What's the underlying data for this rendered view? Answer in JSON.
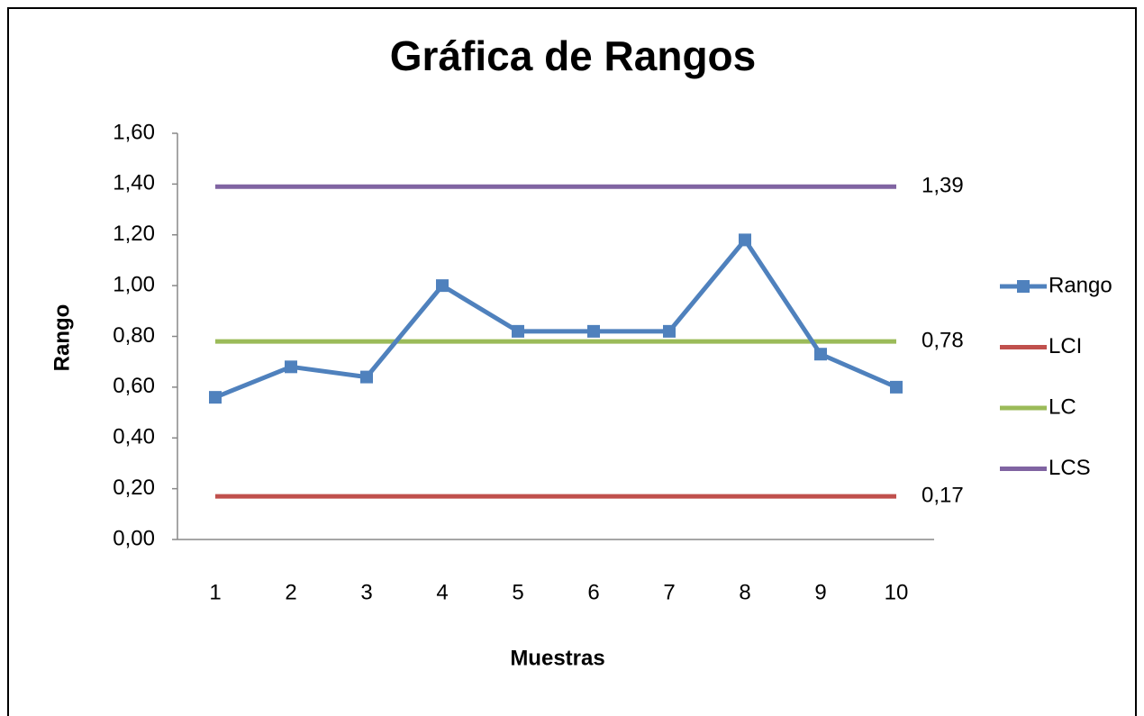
{
  "chart_data": {
    "type": "line",
    "title": "Gráfica de Rangos",
    "x_label": "Muestras",
    "y_label": "Rango",
    "categories": [
      "1",
      "2",
      "3",
      "4",
      "5",
      "6",
      "7",
      "8",
      "9",
      "10"
    ],
    "series": [
      {
        "name": "Rango",
        "color": "#4f81bd",
        "marker": "square",
        "values": [
          0.56,
          0.68,
          0.64,
          1.0,
          0.82,
          0.82,
          0.82,
          1.18,
          0.73,
          0.6
        ]
      },
      {
        "name": "LCI",
        "color": "#c0504d",
        "values": [
          0.17,
          0.17,
          0.17,
          0.17,
          0.17,
          0.17,
          0.17,
          0.17,
          0.17,
          0.17
        ],
        "value_labels": [
          null,
          null,
          null,
          null,
          null,
          null,
          null,
          null,
          null,
          "0,17"
        ]
      },
      {
        "name": "LC",
        "color": "#9bbb59",
        "values": [
          0.78,
          0.78,
          0.78,
          0.78,
          0.78,
          0.78,
          0.78,
          0.78,
          0.78,
          0.78
        ],
        "value_labels": [
          null,
          null,
          null,
          null,
          null,
          null,
          null,
          null,
          null,
          "0,78"
        ]
      },
      {
        "name": "LCS",
        "color": "#8064a2",
        "values": [
          1.39,
          1.39,
          1.39,
          1.39,
          1.39,
          1.39,
          1.39,
          1.39,
          1.39,
          1.39
        ],
        "value_labels": [
          null,
          null,
          null,
          null,
          null,
          null,
          null,
          null,
          null,
          "1,39"
        ]
      }
    ],
    "ylim": [
      0,
      1.6
    ],
    "yticks": [
      {
        "value": 0,
        "label": "0,00"
      },
      {
        "value": 0.2,
        "label": "0,20"
      },
      {
        "value": 0.4,
        "label": "0,40"
      },
      {
        "value": 0.6,
        "label": "0,60"
      },
      {
        "value": 0.8,
        "label": "0,80"
      },
      {
        "value": 1.0,
        "label": "1,00"
      },
      {
        "value": 1.2,
        "label": "1,20"
      },
      {
        "value": 1.4,
        "label": "1,40"
      },
      {
        "value": 1.6,
        "label": "1,60"
      }
    ],
    "grid": false,
    "legend": "right"
  }
}
